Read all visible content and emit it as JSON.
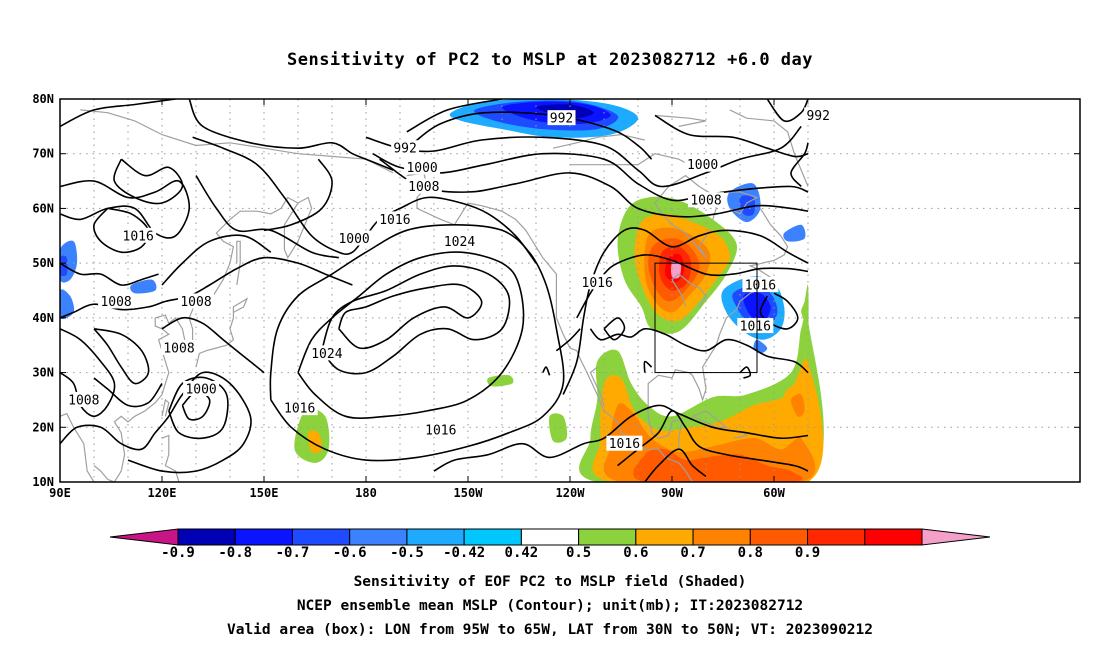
{
  "title": "Sensitivity of PC2 to MSLP at 2023082712 +6.0 day",
  "y_axis_labels": [
    "80N",
    "70N",
    "60N",
    "50N",
    "40N",
    "30N",
    "20N",
    "10N"
  ],
  "x_axis_labels": [
    "90E",
    "120E",
    "150E",
    "180",
    "150W",
    "120W",
    "90W",
    "60W"
  ],
  "contour_labels": [
    {
      "text": "992",
      "lon": -122.5,
      "lat": 76.5
    },
    {
      "text": "992",
      "lon": -168.5,
      "lat": 71.0
    },
    {
      "text": "992",
      "lon": -47.0,
      "lat": 77.0
    },
    {
      "text": "1000",
      "lon": -163.5,
      "lat": 67.5
    },
    {
      "text": "1000",
      "lon": -81.0,
      "lat": 68.0
    },
    {
      "text": "1000",
      "lon": 176.5,
      "lat": 54.5
    },
    {
      "text": "1000",
      "lon": 131.5,
      "lat": 27.0
    },
    {
      "text": "1008",
      "lon": -163.0,
      "lat": 64.0
    },
    {
      "text": "1008",
      "lon": -80.0,
      "lat": 61.5
    },
    {
      "text": "1008",
      "lon": 106.5,
      "lat": 43.0
    },
    {
      "text": "1008",
      "lon": 130.0,
      "lat": 43.0
    },
    {
      "text": "1008",
      "lon": 125.0,
      "lat": 34.5
    },
    {
      "text": "1008",
      "lon": 97.0,
      "lat": 25.0
    },
    {
      "text": "1016",
      "lon": 113.0,
      "lat": 55.0
    },
    {
      "text": "1016",
      "lon": -171.5,
      "lat": 58.0
    },
    {
      "text": "1016",
      "lon": -112.0,
      "lat": 46.5
    },
    {
      "text": "1016",
      "lon": -64.0,
      "lat": 46.0
    },
    {
      "text": "1016",
      "lon": -65.5,
      "lat": 38.5
    },
    {
      "text": "1016",
      "lon": 160.5,
      "lat": 23.5
    },
    {
      "text": "1016",
      "lon": -158.0,
      "lat": 19.5
    },
    {
      "text": "1016",
      "lon": -104.0,
      "lat": 17.0
    },
    {
      "text": "1024",
      "lon": -152.5,
      "lat": 54.0
    },
    {
      "text": "1024",
      "lon": 168.5,
      "lat": 33.5
    }
  ],
  "valid_box": {
    "lon_min": -95,
    "lon_max": -65,
    "lat_min": 30,
    "lat_max": 50
  },
  "colorbar": {
    "colors": [
      "#c71585",
      "#0000b4",
      "#0a14ff",
      "#1e4bff",
      "#3c82ff",
      "#1eaaff",
      "#00c8ff",
      "#ffffff",
      "#8cd23c",
      "#ffaa00",
      "#ff8200",
      "#ff5a00",
      "#ff2800",
      "#ff0000",
      "#f5a0c8"
    ],
    "ticks": [
      "-0.9",
      "-0.8",
      "-0.7",
      "-0.6",
      "-0.5",
      "-0.42",
      "0.42",
      "0.5",
      "0.6",
      "0.7",
      "0.8",
      "0.9"
    ]
  },
  "caption_lines": [
    "Sensitivity of EOF PC2 to MSLP field (Shaded)",
    "NCEP ensemble mean MSLP (Contour); unit(mb); IT:2023082712",
    "Valid area (box): LON from 95W to 65W, LAT from 30N to 50N; VT: 2023090212"
  ]
}
